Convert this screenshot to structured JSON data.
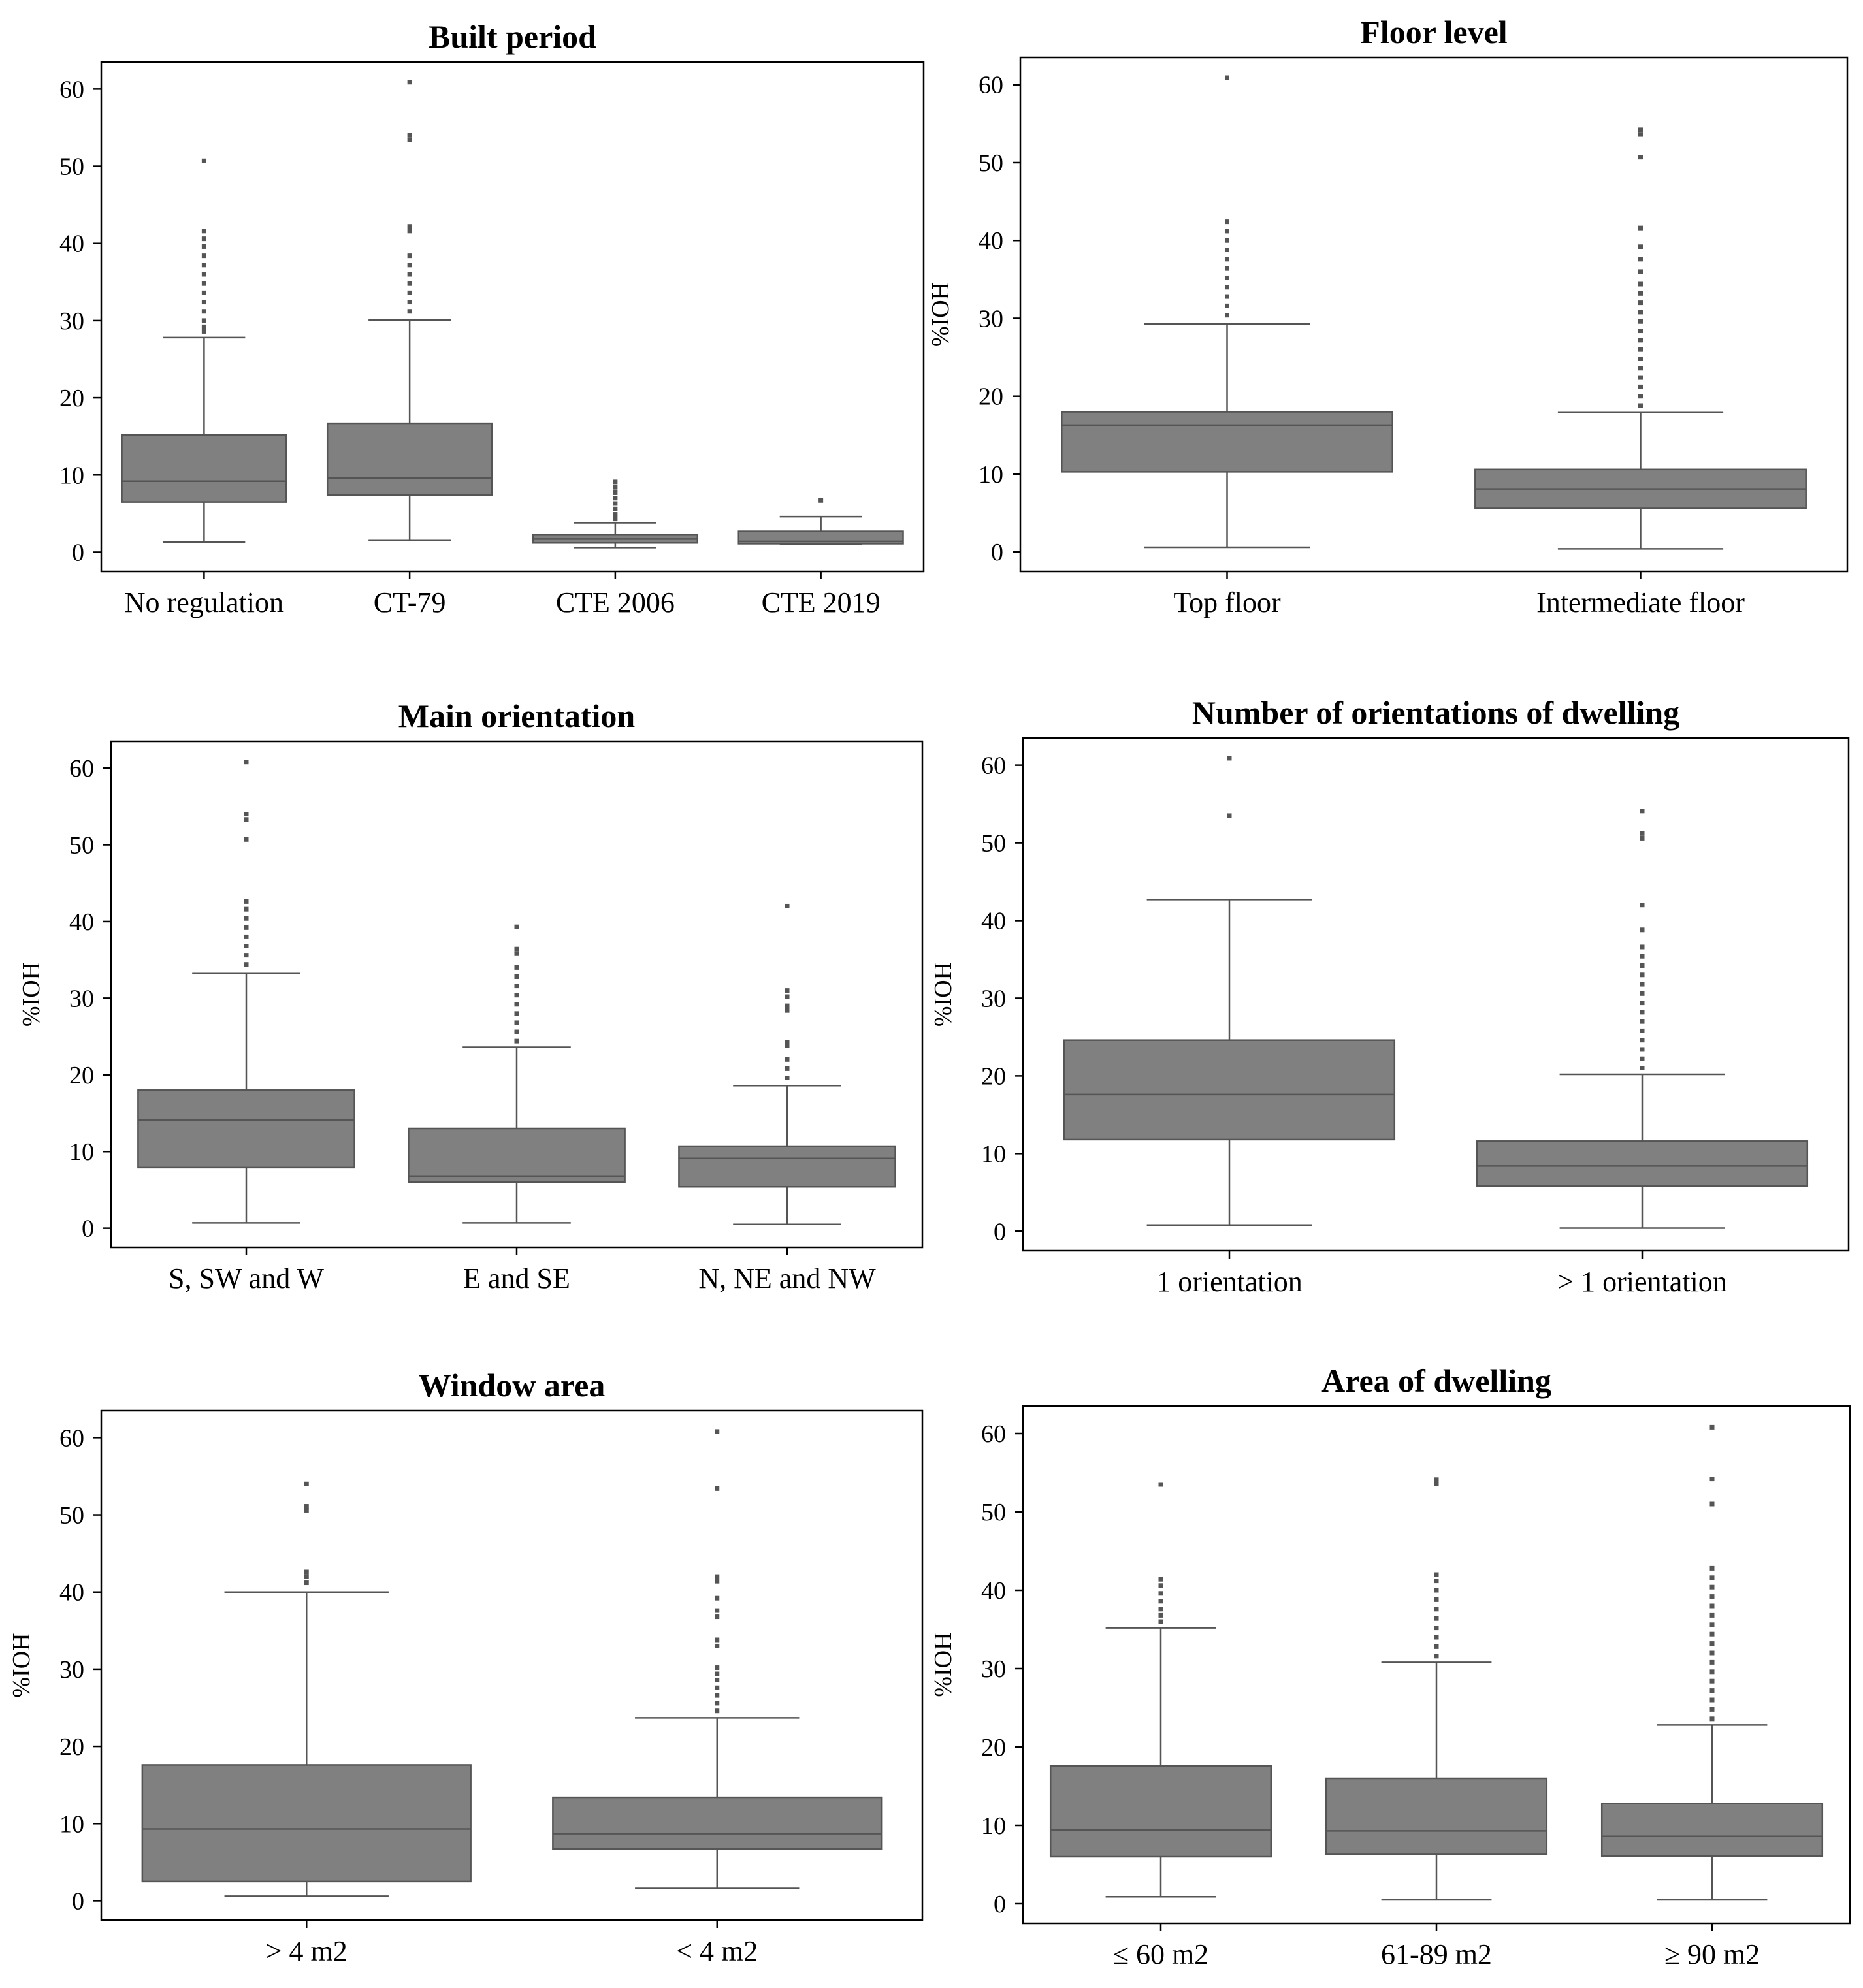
{
  "charts": [
    {
      "type": "box",
      "title": "Built period",
      "ylabel": "",
      "ylim": [
        -2.5,
        63.5
      ],
      "yticks": [
        0,
        10,
        20,
        30,
        40,
        50,
        60
      ],
      "categories": [
        "No regulation",
        "CT-79",
        "CTE 2006",
        "CTE 2019"
      ],
      "boxes": [
        {
          "q1": 6.5,
          "median": 9.2,
          "q3": 15.2,
          "lo": 1.3,
          "hi": 27.8,
          "outliers": [
            28.6,
            29.2,
            30.0,
            31.2,
            32.4,
            33.6,
            34.8,
            36.0,
            37.2,
            38.4,
            39.6,
            40.6,
            41.6,
            50.7
          ]
        },
        {
          "q1": 7.4,
          "median": 9.6,
          "q3": 16.7,
          "lo": 1.5,
          "hi": 30.1,
          "outliers": [
            31.2,
            32.4,
            33.6,
            34.8,
            36.0,
            37.2,
            38.4,
            41.6,
            42.2,
            53.4,
            54.0,
            60.9
          ]
        },
        {
          "q1": 1.2,
          "median": 1.7,
          "q3": 2.3,
          "lo": 0.6,
          "hi": 3.8,
          "outliers": [
            4.3,
            4.9,
            5.6,
            6.3,
            7.0,
            7.7,
            8.4,
            9.1
          ]
        },
        {
          "q1": 1.1,
          "median": 1.4,
          "q3": 2.7,
          "lo": 1.0,
          "hi": 4.6,
          "outliers": [
            6.7
          ]
        }
      ]
    },
    {
      "type": "box",
      "title": "Floor level",
      "ylabel": "%IOH",
      "ylim": [
        -2.5,
        63.5
      ],
      "yticks": [
        0,
        10,
        20,
        30,
        40,
        50,
        60
      ],
      "categories": [
        "Top floor",
        "Intermediate floor"
      ],
      "boxes": [
        {
          "q1": 10.3,
          "median": 16.3,
          "q3": 18.0,
          "lo": 0.6,
          "hi": 29.3,
          "outliers": [
            30.4,
            31.6,
            32.8,
            34.0,
            35.2,
            36.4,
            37.6,
            38.8,
            40.0,
            41.2,
            42.4,
            60.9
          ]
        },
        {
          "q1": 5.6,
          "median": 8.1,
          "q3": 10.6,
          "lo": 0.4,
          "hi": 17.9,
          "outliers": [
            18.8,
            20.0,
            21.2,
            22.4,
            23.6,
            24.8,
            26.0,
            27.2,
            28.4,
            29.6,
            30.8,
            32.0,
            33.2,
            34.4,
            36.0,
            37.6,
            39.2,
            41.6,
            50.7,
            53.6,
            54.2
          ]
        }
      ]
    },
    {
      "type": "box",
      "title": "Main orientation",
      "ylabel": "%IOH",
      "ylim": [
        -2.5,
        63.5
      ],
      "yticks": [
        0,
        10,
        20,
        30,
        40,
        50,
        60
      ],
      "categories": [
        "S, SW and W",
        "E and SE",
        "N, NE and NW"
      ],
      "boxes": [
        {
          "q1": 7.9,
          "median": 14.1,
          "q3": 18.0,
          "lo": 0.7,
          "hi": 33.2,
          "outliers": [
            34.4,
            35.6,
            36.8,
            38.0,
            39.2,
            40.4,
            41.6,
            42.6,
            50.7,
            53.3,
            54.0,
            60.8
          ]
        },
        {
          "q1": 6.0,
          "median": 6.8,
          "q3": 13.0,
          "lo": 0.7,
          "hi": 23.6,
          "outliers": [
            24.4,
            25.6,
            26.8,
            28.0,
            29.2,
            30.4,
            31.6,
            32.8,
            34.0,
            35.8,
            36.4,
            39.3
          ]
        },
        {
          "q1": 5.4,
          "median": 9.1,
          "q3": 10.7,
          "lo": 0.5,
          "hi": 18.6,
          "outliers": [
            19.6,
            20.8,
            22.0,
            23.8,
            24.2,
            28.4,
            29.0,
            30.2,
            31.0,
            42.0
          ]
        }
      ]
    },
    {
      "type": "box",
      "title": "Number of orientations of dwelling",
      "ylabel": "%IOH",
      "ylim": [
        -2.5,
        63.5
      ],
      "yticks": [
        0,
        10,
        20,
        30,
        40,
        50,
        60
      ],
      "categories": [
        "1 orientation",
        "> 1 orientation"
      ],
      "boxes": [
        {
          "q1": 11.8,
          "median": 17.6,
          "q3": 24.6,
          "lo": 0.8,
          "hi": 42.7,
          "outliers": [
            53.5,
            60.9
          ]
        },
        {
          "q1": 5.8,
          "median": 8.4,
          "q3": 11.6,
          "lo": 0.4,
          "hi": 20.2,
          "outliers": [
            21.0,
            22.2,
            23.4,
            24.6,
            25.8,
            27.0,
            28.2,
            29.4,
            30.6,
            31.8,
            33.0,
            34.2,
            35.4,
            36.6,
            38.8,
            42.0,
            50.6,
            51.2,
            54.1
          ]
        }
      ]
    },
    {
      "type": "box",
      "title": "Window area",
      "ylabel": "%IOH",
      "ylim": [
        -2.5,
        63.5
      ],
      "yticks": [
        0,
        10,
        20,
        30,
        40,
        50,
        60
      ],
      "categories": [
        "> 4 m2",
        "< 4 m2"
      ],
      "boxes": [
        {
          "q1": 2.5,
          "median": 9.3,
          "q3": 17.6,
          "lo": 0.6,
          "hi": 40.0,
          "outliers": [
            41.2,
            42.0,
            42.6,
            50.6,
            51.1,
            54.0
          ]
        },
        {
          "q1": 6.7,
          "median": 8.7,
          "q3": 13.4,
          "lo": 1.6,
          "hi": 23.7,
          "outliers": [
            24.6,
            25.6,
            26.6,
            27.6,
            28.6,
            29.4,
            30.2,
            33.0,
            33.8,
            36.8,
            37.6,
            39.2,
            41.4,
            42.0,
            53.4,
            60.8
          ]
        }
      ]
    },
    {
      "type": "box",
      "title": "Area of dwelling",
      "ylabel": "%IOH",
      "ylim": [
        -2.5,
        63.5
      ],
      "yticks": [
        0,
        10,
        20,
        30,
        40,
        50,
        60
      ],
      "categories": [
        "≤ 60 m2",
        "61-89 m2",
        "≥ 90 m2"
      ],
      "boxes": [
        {
          "q1": 6.0,
          "median": 9.4,
          "q3": 17.6,
          "lo": 0.9,
          "hi": 35.2,
          "outliers": [
            36.0,
            36.8,
            37.6,
            38.6,
            39.6,
            40.6,
            41.4,
            53.5
          ]
        },
        {
          "q1": 6.3,
          "median": 9.3,
          "q3": 16.0,
          "lo": 0.5,
          "hi": 30.8,
          "outliers": [
            31.6,
            32.8,
            34.0,
            35.2,
            36.4,
            37.6,
            38.8,
            40.0,
            41.2,
            42.0,
            53.6,
            54.1
          ]
        },
        {
          "q1": 6.1,
          "median": 8.6,
          "q3": 12.8,
          "lo": 0.5,
          "hi": 22.8,
          "outliers": [
            23.6,
            24.8,
            26.0,
            27.2,
            28.4,
            29.6,
            30.8,
            32.0,
            33.2,
            34.4,
            35.6,
            36.8,
            38.0,
            39.2,
            40.4,
            41.6,
            42.8,
            51.0,
            54.2,
            60.8
          ]
        }
      ]
    }
  ],
  "colors": {
    "box_fill": "#808080",
    "line": "#555555",
    "outlier": "#555555",
    "frame": "#000000"
  }
}
